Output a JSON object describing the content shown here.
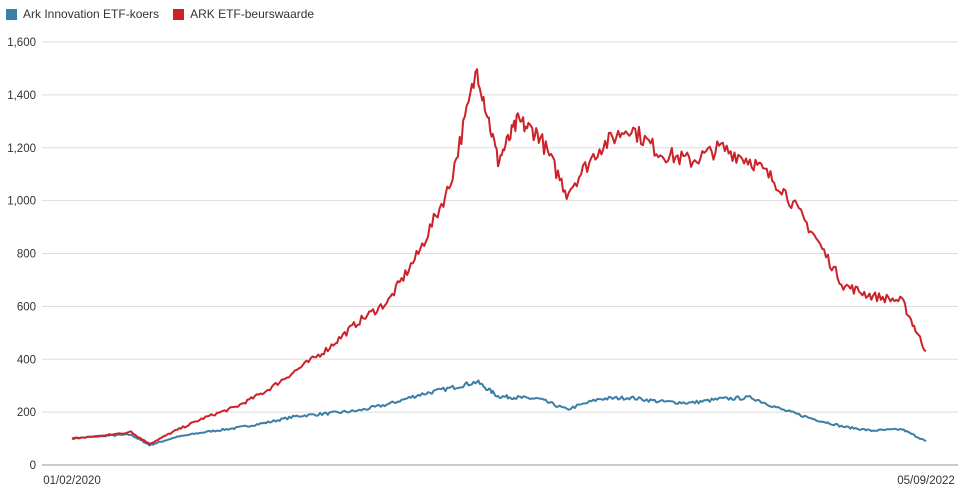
{
  "chart_data": {
    "type": "line",
    "title": "",
    "xlabel": "",
    "ylabel": "",
    "x_tick_labels": [
      "01/02/2020",
      "05/09/2022"
    ],
    "y_ticks": [
      0,
      200,
      400,
      600,
      800,
      1000,
      1200,
      1400,
      1600
    ],
    "y_tick_labels": [
      "0",
      "200",
      "400",
      "600",
      "800",
      "1,000",
      "1,200",
      "1,400",
      "1,600"
    ],
    "ylim": [
      0,
      1600
    ],
    "grid": true,
    "legend_position": "top-left",
    "x": [
      "2020-01-02",
      "2020-02-01",
      "2020-03-01",
      "2020-03-20",
      "2020-04-15",
      "2020-05-15",
      "2020-06-15",
      "2020-07-15",
      "2020-08-15",
      "2020-09-15",
      "2020-10-15",
      "2020-11-15",
      "2020-12-15",
      "2021-01-15",
      "2021-02-12",
      "2021-03-05",
      "2021-03-25",
      "2021-04-15",
      "2021-05-13",
      "2021-06-15",
      "2021-07-15",
      "2021-08-15",
      "2021-09-15",
      "2021-10-15",
      "2021-11-15",
      "2021-12-15",
      "2022-01-15",
      "2022-02-15",
      "2022-03-15",
      "2022-04-15",
      "2022-05-09"
    ],
    "series": [
      {
        "name": "Ark Innovation ETF-koers",
        "color": "#3d7ea6",
        "values": [
          100,
          110,
          115,
          75,
          105,
          125,
          140,
          160,
          185,
          195,
          205,
          230,
          265,
          290,
          315,
          260,
          255,
          250,
          210,
          250,
          255,
          240,
          235,
          250,
          255,
          210,
          175,
          145,
          130,
          135,
          90
        ]
      },
      {
        "name": "ARK ETF-beurswaarde",
        "color": "#cc2229",
        "values": [
          100,
          110,
          125,
          80,
          130,
          180,
          220,
          280,
          360,
          440,
          540,
          620,
          800,
          1050,
          1500,
          1150,
          1300,
          1250,
          1030,
          1200,
          1280,
          1180,
          1150,
          1200,
          1150,
          1050,
          880,
          680,
          640,
          620,
          430
        ]
      }
    ]
  }
}
